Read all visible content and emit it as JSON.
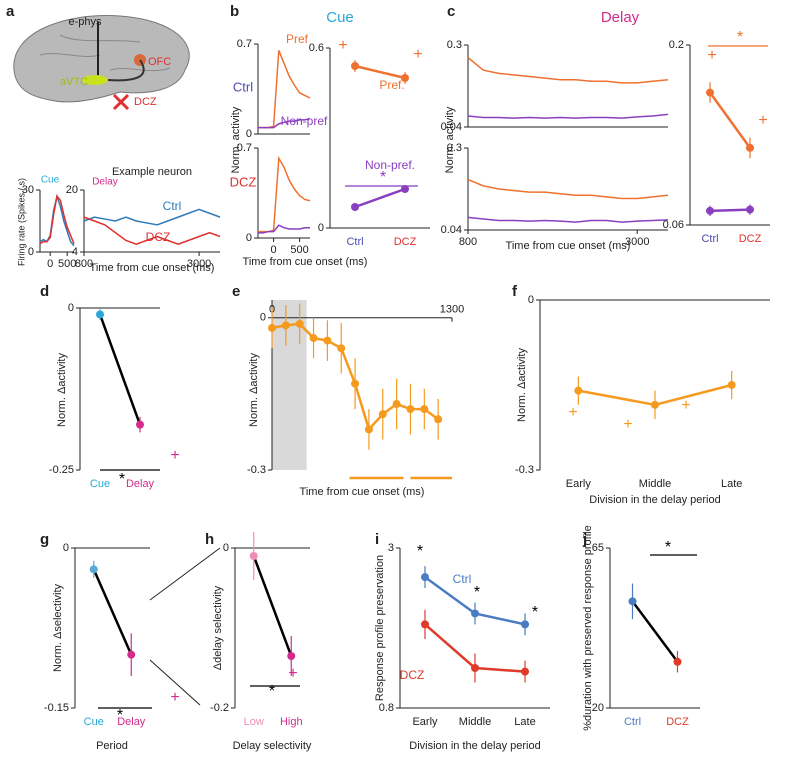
{
  "illustration": {
    "panel": "a",
    "labels": [
      "e-phys",
      "OFC",
      "aVTC",
      "DCZ"
    ]
  },
  "chart_data": [
    {
      "type": "line",
      "title": "Cue",
      "title_color": "#29a8d8",
      "ylabel": "Firing rate (Spikes / s)",
      "xlim": [
        -300,
        700
      ],
      "xticks": [
        0,
        500
      ],
      "ylim": [
        0,
        30
      ],
      "yticks": [
        0,
        30
      ],
      "x": [
        -300,
        -200,
        -100,
        0,
        100,
        200,
        300,
        400,
        500,
        600,
        700
      ],
      "series": [
        {
          "color": "#2f7ab8",
          "values": [
            5,
            6,
            5,
            8,
            20,
            27,
            22,
            15,
            10,
            5,
            3
          ]
        },
        {
          "color": "#e03030",
          "values": [
            4,
            5,
            5,
            7,
            18,
            27,
            25,
            18,
            12,
            8,
            4
          ]
        }
      ]
    },
    {
      "type": "line",
      "heading": "Example neuron",
      "title": "Delay",
      "title_color": "#d42b8c",
      "xlabel": "Time from cue onset (ms)",
      "xlim": [
        800,
        3400
      ],
      "xticks": [
        800,
        3000
      ],
      "ylim": [
        4,
        20
      ],
      "yticks": [
        4,
        20
      ],
      "x": [
        800,
        1000,
        1200,
        1400,
        1600,
        1800,
        2000,
        2200,
        2400,
        2600,
        2800,
        3000,
        3200,
        3400
      ],
      "series": [
        {
          "name": "Ctrl",
          "color": "#2f7ab8",
          "values": [
            12,
            13,
            12.5,
            12,
            13,
            12,
            11.5,
            11,
            12,
            13,
            14,
            15,
            14,
            13
          ]
        },
        {
          "name": "DCZ",
          "color": "#e03030",
          "values": [
            13,
            12,
            11,
            9,
            7,
            6,
            7,
            8,
            7,
            6,
            7,
            8,
            9,
            8
          ]
        }
      ]
    },
    {
      "type": "line",
      "panel": "b",
      "heading": "Cue",
      "heading_color": "#29a8d8",
      "side_label": "Ctrl",
      "side_color": "#4b4bb0",
      "xlim": [
        -300,
        700
      ],
      "ylim": [
        0,
        0.7
      ],
      "yticks": [
        0,
        0.7
      ],
      "x": [
        -300,
        -200,
        -100,
        0,
        100,
        200,
        300,
        400,
        500,
        600,
        700
      ],
      "series": [
        {
          "name": "Pref",
          "color": "#f07030",
          "values": [
            0.05,
            0.05,
            0.05,
            0.06,
            0.65,
            0.55,
            0.45,
            0.38,
            0.32,
            0.3,
            0.28
          ]
        },
        {
          "name": "Non-pref",
          "color": "#8a3fc0",
          "values": [
            0.05,
            0.05,
            0.05,
            0.05,
            0.08,
            0.09,
            0.1,
            0.1,
            0.11,
            0.11,
            0.12
          ]
        }
      ]
    },
    {
      "type": "line",
      "side_label": "DCZ",
      "side_color": "#e03030",
      "xlabel": "Time from cue onset (ms)",
      "ylabel": "Norm. activity",
      "xlim": [
        -300,
        700
      ],
      "xticks": [
        0,
        500
      ],
      "ylim": [
        0,
        0.7
      ],
      "yticks": [
        0,
        0.7
      ],
      "x": [
        -300,
        -200,
        -100,
        0,
        100,
        200,
        300,
        400,
        500,
        600,
        700
      ],
      "series": [
        {
          "color": "#f07030",
          "values": [
            0.05,
            0.05,
            0.05,
            0.06,
            0.62,
            0.55,
            0.45,
            0.38,
            0.33,
            0.3,
            0.29
          ]
        },
        {
          "color": "#8a3fc0",
          "values": [
            0.04,
            0.04,
            0.05,
            0.05,
            0.1,
            0.08,
            0.07,
            0.07,
            0.07,
            0.08,
            0.08
          ]
        }
      ]
    },
    {
      "type": "errorbar",
      "categories": [
        "Ctrl",
        "DCZ"
      ],
      "category_colors": [
        "#4b4bb0",
        "#e03030"
      ],
      "ylim": [
        0,
        0.6
      ],
      "yticks": [
        0,
        0.6
      ],
      "series": [
        {
          "name": "Pref.",
          "color": "#f07030",
          "values": [
            0.54,
            0.5
          ],
          "errors": [
            0.02,
            0.02
          ]
        },
        {
          "name": "Non-pref.",
          "color": "#8a3fc0",
          "values": [
            0.07,
            0.13
          ],
          "errors": [
            0.01,
            0.01
          ]
        }
      ],
      "annotations": [
        {
          "text": "+",
          "color": "#f07030"
        },
        {
          "text": "+",
          "color": "#f07030"
        },
        {
          "text": "*",
          "color": "#8a3fc0"
        }
      ]
    },
    {
      "type": "line",
      "panel": "c",
      "heading": "Delay",
      "heading_color": "#d42b8c",
      "xlim": [
        800,
        3400
      ],
      "ylim": [
        0.04,
        0.3
      ],
      "yticks": [
        0.04,
        0.3
      ],
      "x": [
        800,
        1000,
        1200,
        1400,
        1600,
        1800,
        2000,
        2200,
        2400,
        2600,
        2800,
        3000,
        3200,
        3400
      ],
      "series": [
        {
          "color": "#f07030",
          "values": [
            0.26,
            0.22,
            0.21,
            0.205,
            0.2,
            0.195,
            0.19,
            0.19,
            0.185,
            0.185,
            0.18,
            0.18,
            0.185,
            0.19
          ]
        },
        {
          "color": "#8a3fc0",
          "values": [
            0.075,
            0.07,
            0.07,
            0.068,
            0.07,
            0.068,
            0.07,
            0.068,
            0.07,
            0.07,
            0.068,
            0.072,
            0.075,
            0.08
          ]
        }
      ]
    },
    {
      "type": "line",
      "xlabel": "Time from cue onset (ms)",
      "ylabel": "Norm. activity",
      "xlim": [
        800,
        3400
      ],
      "xticks": [
        800,
        3000
      ],
      "ylim": [
        0.04,
        0.3
      ],
      "yticks": [
        0.04,
        0.3
      ],
      "x": [
        800,
        1000,
        1200,
        1400,
        1600,
        1800,
        2000,
        2200,
        2400,
        2600,
        2800,
        3000,
        3200,
        3400
      ],
      "series": [
        {
          "color": "#f07030",
          "values": [
            0.2,
            0.18,
            0.17,
            0.165,
            0.16,
            0.16,
            0.155,
            0.15,
            0.15,
            0.145,
            0.14,
            0.14,
            0.145,
            0.15
          ]
        },
        {
          "color": "#8a3fc0",
          "values": [
            0.08,
            0.075,
            0.07,
            0.07,
            0.068,
            0.07,
            0.068,
            0.065,
            0.07,
            0.07,
            0.065,
            0.068,
            0.07,
            0.072
          ]
        }
      ]
    },
    {
      "type": "errorbar",
      "categories": [
        "Ctrl",
        "DCZ"
      ],
      "category_colors": [
        "#4b4bb0",
        "#e03030"
      ],
      "ylim": [
        0.06,
        0.2
      ],
      "yticks": [
        0.06,
        0.2
      ],
      "series": [
        {
          "color": "#f07030",
          "values": [
            0.163,
            0.12
          ],
          "errors": [
            0.008,
            0.008
          ]
        },
        {
          "color": "#8a3fc0",
          "values": [
            0.071,
            0.072
          ],
          "errors": [
            0.004,
            0.004
          ]
        }
      ],
      "annotations": [
        {
          "text": "*",
          "color": "#f07030"
        },
        {
          "text": "+",
          "color": "#f07030"
        },
        {
          "text": "+",
          "color": "#f07030"
        }
      ]
    },
    {
      "type": "errorbar",
      "panel": "d",
      "ylabel": "Norm. Δactivity",
      "categories": [
        "Cue",
        "Delay"
      ],
      "category_colors": [
        "#29a8d8",
        "#d42b8c"
      ],
      "ylim": [
        -0.25,
        0
      ],
      "yticks": [
        0,
        -0.25
      ],
      "series": [
        {
          "color": "#000000",
          "point_colors": [
            "#29a8d8",
            "#d42b8c"
          ],
          "values": [
            -0.01,
            -0.18
          ],
          "errors": [
            0.008,
            0.012
          ]
        }
      ],
      "annotations": [
        {
          "text": "*",
          "color": "#000000"
        },
        {
          "text": "+",
          "color": "#d42b8c"
        }
      ]
    },
    {
      "type": "errorbar",
      "panel": "e",
      "xlabel": "Time from cue onset (ms)",
      "ylabel": "Norm. Δactivity",
      "xlim": [
        0,
        1300
      ],
      "xticks": [
        0,
        1300
      ],
      "ylim": [
        -0.3,
        0.035
      ],
      "yticks": [
        0,
        -0.3
      ],
      "shaded_x": [
        0,
        250
      ],
      "significance_bars": [
        [
          560,
          950
        ],
        [
          1000,
          1300
        ]
      ],
      "significance_color": "#f59a1e",
      "x": [
        0,
        100,
        200,
        300,
        400,
        500,
        600,
        700,
        800,
        900,
        1000,
        1100,
        1200
      ],
      "series": [
        {
          "color": "#f59a1e",
          "values": [
            -0.02,
            -0.015,
            -0.012,
            -0.04,
            -0.045,
            -0.06,
            -0.13,
            -0.22,
            -0.19,
            -0.17,
            -0.18,
            -0.18,
            -0.2
          ],
          "errors": [
            0.04,
            0.04,
            0.04,
            0.04,
            0.04,
            0.05,
            0.05,
            0.04,
            0.05,
            0.05,
            0.05,
            0.04,
            0.04
          ]
        }
      ]
    },
    {
      "type": "errorbar",
      "panel": "f",
      "xlabel": "Division in the delay period",
      "ylabel": "Norm. Δactivity",
      "categories": [
        "Early",
        "Middle",
        "Late"
      ],
      "ylim": [
        -0.3,
        0
      ],
      "yticks": [
        0,
        -0.3
      ],
      "series": [
        {
          "color": "#f59a1e",
          "values": [
            -0.16,
            -0.185,
            -0.15
          ],
          "errors": [
            0.025,
            0.025,
            0.025
          ]
        }
      ],
      "annotations": [
        {
          "text": "+",
          "color": "#f59a1e"
        },
        {
          "text": "+",
          "color": "#f59a1e"
        },
        {
          "text": "+",
          "color": "#f59a1e"
        }
      ]
    },
    {
      "type": "errorbar",
      "panel": "g",
      "xlabel": "Period",
      "ylabel": "Norm. Δselectivity",
      "categories": [
        "Cue",
        "Delay"
      ],
      "category_colors": [
        "#29a8d8",
        "#d42b8c"
      ],
      "ylim": [
        -0.15,
        0
      ],
      "yticks": [
        0,
        -0.15
      ],
      "series": [
        {
          "color": "#000000",
          "point_colors": [
            "#5aa9d6",
            "#d42b8c"
          ],
          "values": [
            -0.02,
            -0.1
          ],
          "errors": [
            0.008,
            0.02
          ]
        }
      ],
      "annotations": [
        {
          "text": "*",
          "color": "#000000"
        },
        {
          "text": "+",
          "color": "#d42b8c"
        }
      ]
    },
    {
      "type": "errorbar",
      "panel": "h",
      "xlabel": "Delay selectivity",
      "ylabel": "Δdelay selectivity",
      "categories": [
        "Low",
        "High"
      ],
      "category_colors": [
        "#f08cb8",
        "#d42b8c"
      ],
      "ylim": [
        -0.2,
        0
      ],
      "yticks": [
        0,
        -0.2
      ],
      "series": [
        {
          "color": "#000000",
          "point_colors": [
            "#f08cb8",
            "#d42b8c"
          ],
          "values": [
            -0.01,
            -0.135
          ],
          "errors": [
            0.03,
            0.025
          ]
        }
      ],
      "annotations": [
        {
          "text": "*",
          "color": "#000000"
        },
        {
          "text": "+",
          "color": "#d42b8c"
        }
      ]
    },
    {
      "type": "errorbar",
      "panel": "i",
      "xlabel": "Division in the delay period",
      "ylabel": "Response profile preservation",
      "categories": [
        "Early",
        "Middle",
        "Late"
      ],
      "ylim": [
        0.8,
        3
      ],
      "yticks": [
        0.8,
        3
      ],
      "series": [
        {
          "name": "Ctrl",
          "color": "#4a7cc4",
          "values": [
            2.6,
            2.1,
            1.95
          ],
          "errors": [
            0.15,
            0.15,
            0.15
          ]
        },
        {
          "name": "DCZ",
          "color": "#e03a2a",
          "values": [
            1.95,
            1.35,
            1.3
          ],
          "errors": [
            0.2,
            0.2,
            0.15
          ]
        }
      ],
      "annotations": [
        {
          "text": "*",
          "color": "#000000"
        },
        {
          "text": "*",
          "color": "#000000"
        },
        {
          "text": "*",
          "color": "#000000"
        }
      ]
    },
    {
      "type": "errorbar",
      "panel": "j",
      "ylabel": "%duration with preserved response profile",
      "categories": [
        "Ctrl",
        "DCZ"
      ],
      "category_colors": [
        "#4a7cc4",
        "#e03a2a"
      ],
      "ylim": [
        20,
        65
      ],
      "yticks": [
        20,
        65
      ],
      "series": [
        {
          "color": "#000000",
          "point_colors": [
            "#4a7cc4",
            "#e03a2a"
          ],
          "values": [
            50,
            33
          ],
          "errors": [
            5,
            3
          ]
        }
      ],
      "annotations": [
        {
          "text": "*",
          "color": "#000000"
        }
      ]
    }
  ]
}
